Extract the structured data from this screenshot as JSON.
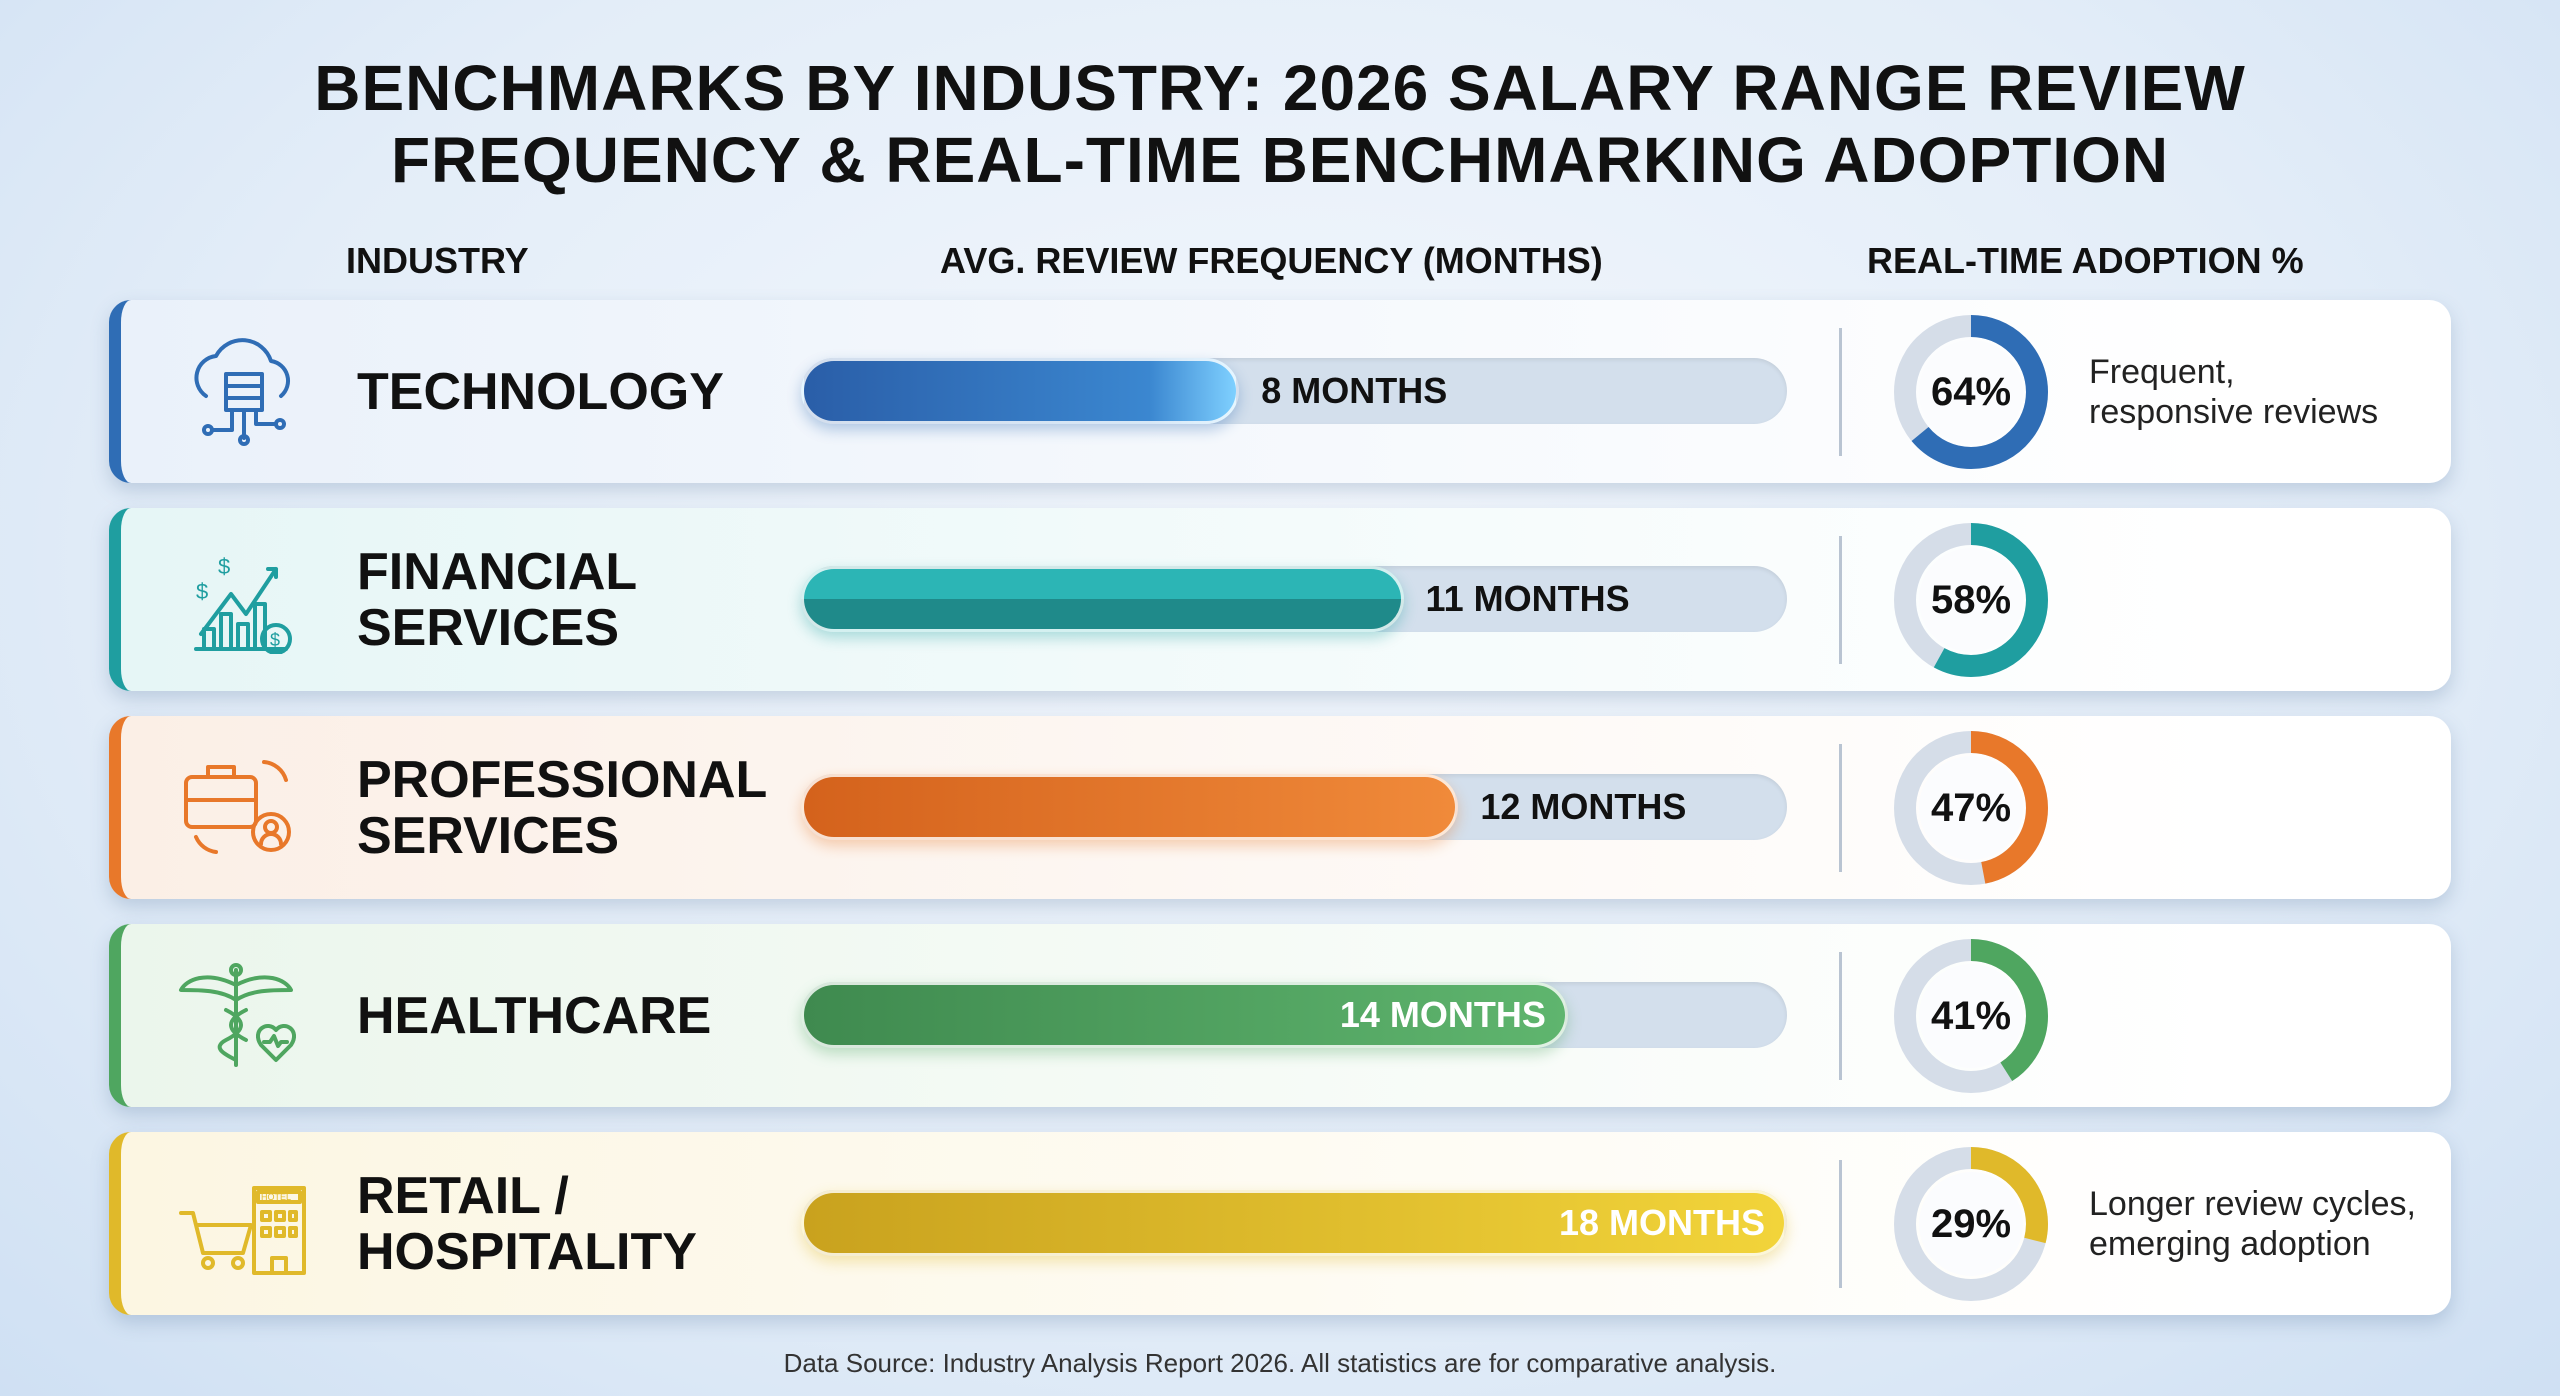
{
  "title_lines": [
    "BENCHMARKS BY INDUSTRY: 2026 SALARY RANGE REVIEW",
    "FREQUENCY & REAL-TIME BENCHMARKING ADOPTION"
  ],
  "headers": {
    "industry": "INDUSTRY",
    "frequency": "AVG. REVIEW FREQUENCY (MONTHS)",
    "adoption": "REAL-TIME ADOPTION %"
  },
  "footer": "Data Source: Industry Analysis Report 2026. All statistics are for comparative analysis.",
  "chart_data": {
    "type": "bar",
    "title": "BENCHMARKS BY INDUSTRY: 2026 SALARY RANGE REVIEW FREQUENCY & REAL-TIME BENCHMARKING ADOPTION",
    "categories": [
      "TECHNOLOGY",
      "FINANCIAL SERVICES",
      "PROFESSIONAL SERVICES",
      "HEALTHCARE",
      "RETAIL / HOSPITALITY"
    ],
    "series": [
      {
        "name": "AVG. REVIEW FREQUENCY (MONTHS)",
        "values": [
          8,
          11,
          12,
          14,
          18
        ]
      },
      {
        "name": "REAL-TIME ADOPTION %",
        "values": [
          64,
          58,
          47,
          41,
          29
        ]
      }
    ],
    "xlim": [
      0,
      18
    ]
  },
  "rows": [
    {
      "label_lines": [
        "TECHNOLOGY"
      ],
      "months": 8,
      "bar_label": "8 MONTHS",
      "adoption": 64,
      "adoption_label": "64%",
      "desc": [
        "Frequent,",
        "responsive reviews"
      ],
      "icon": "cloud-server-icon",
      "color": "#2f6db5",
      "bg": "#eaf1fa",
      "fill": "linear-gradient(90deg,#2a5ea8,#3b87d0 80%,#7fd0ff)"
    },
    {
      "label_lines": [
        "FINANCIAL",
        "SERVICES"
      ],
      "months": 11,
      "bar_label": "11 MONTHS",
      "adoption": 58,
      "adoption_label": "58%",
      "desc": [],
      "icon": "finance-chart-icon",
      "color": "#1f9ea0",
      "bg": "#e6f6f6",
      "fill": "linear-gradient(180deg,#2cb5b5 50%,#1f8a8a 50%)"
    },
    {
      "label_lines": [
        "PROFESSIONAL",
        "SERVICES"
      ],
      "months": 12,
      "bar_label": "12 MONTHS",
      "adoption": 47,
      "adoption_label": "47%",
      "desc": [],
      "icon": "briefcase-gear-icon",
      "color": "#e8782a",
      "bg": "#fbefe6",
      "fill": "linear-gradient(90deg,#d4621c,#f08a3a)"
    },
    {
      "label_lines": [
        "HEALTHCARE"
      ],
      "months": 14,
      "bar_label": "14 MONTHS",
      "adoption": 41,
      "adoption_label": "41%",
      "desc": [],
      "icon": "caduceus-heart-icon",
      "color": "#4fa660",
      "bg": "#ebf6ec",
      "fill": "linear-gradient(90deg,#3f8a4f,#5fb56e)"
    },
    {
      "label_lines": [
        "RETAIL /",
        "HOSPITALITY"
      ],
      "months": 18,
      "bar_label": "18 MONTHS",
      "adoption": 29,
      "adoption_label": "29%",
      "desc": [
        "Longer review cycles,",
        "emerging adoption"
      ],
      "icon": "cart-hotel-icon",
      "color": "#e0b92a",
      "bg": "#fcf6e2",
      "fill": "linear-gradient(90deg,#c9a21e,#f2d43a)"
    }
  ]
}
